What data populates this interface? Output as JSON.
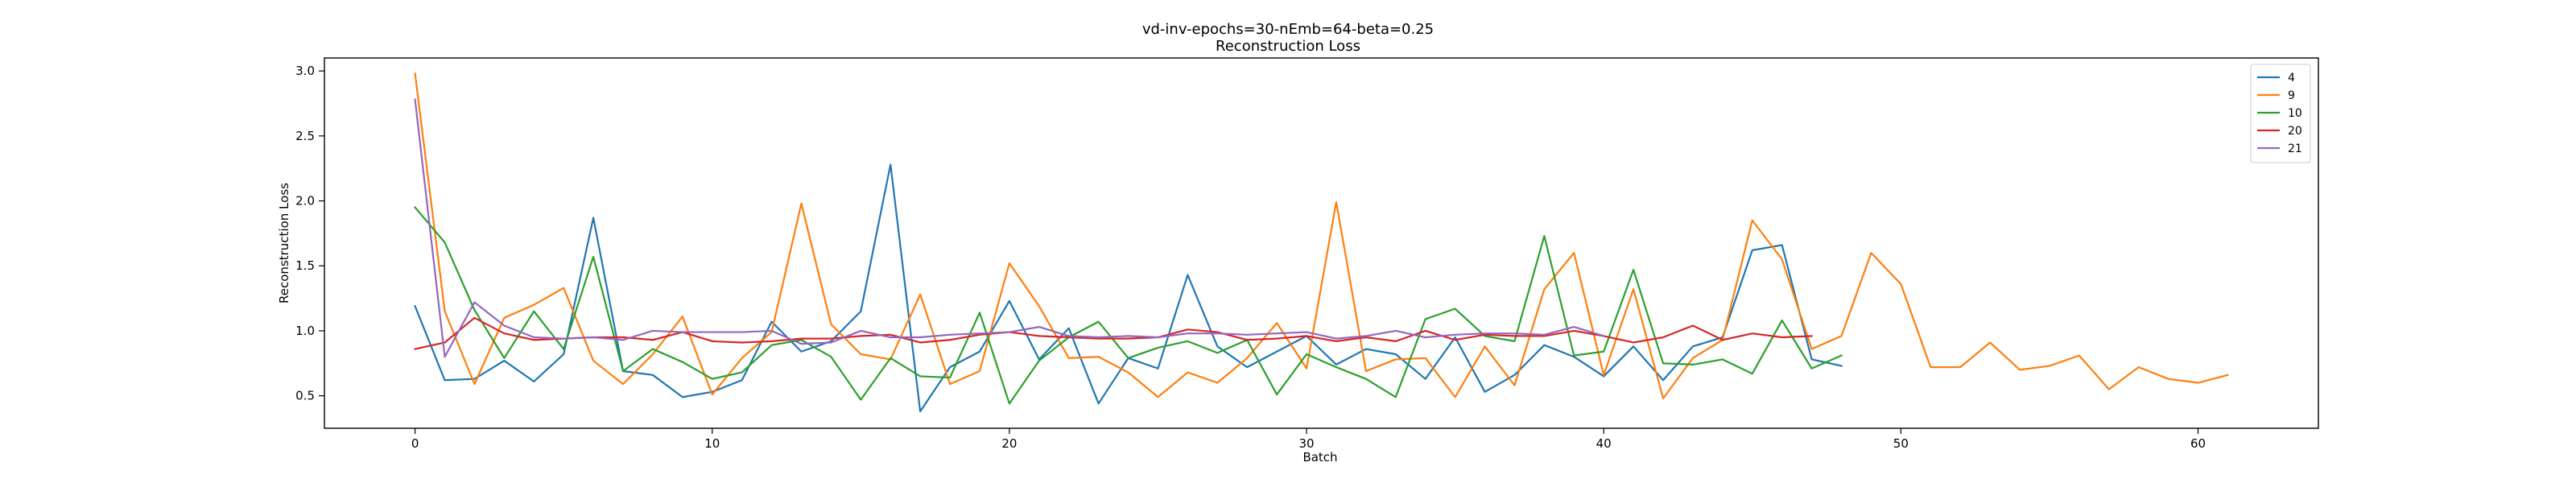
{
  "chart_data": {
    "type": "line",
    "title": "vd-inv-epochs=30-nEmb=64-beta=0.25",
    "subtitle": "Reconstruction Loss",
    "xlabel": "Batch",
    "ylabel": "Reconstruction Loss",
    "xlim": [
      -3.05,
      64.05
    ],
    "ylim": [
      0.25,
      3.1
    ],
    "xticks": [
      0,
      10,
      20,
      30,
      40,
      50,
      60
    ],
    "yticks": [
      0.5,
      1.0,
      1.5,
      2.0,
      2.5,
      3.0
    ],
    "xtick_labels": [
      "0",
      "10",
      "20",
      "30",
      "40",
      "50",
      "60"
    ],
    "ytick_labels": [
      "0.5",
      "1.0",
      "1.5",
      "2.0",
      "2.5",
      "3.0"
    ],
    "grid": false,
    "legend_position": "top-right",
    "series": [
      {
        "name": "4",
        "color": "#1f77b4",
        "values": [
          1.19,
          0.62,
          0.63,
          0.77,
          0.61,
          0.82,
          1.87,
          0.69,
          0.66,
          0.49,
          0.53,
          0.62,
          1.07,
          0.84,
          0.92,
          1.15,
          2.28,
          0.38,
          0.72,
          0.84,
          1.23,
          0.78,
          1.02,
          0.44,
          0.79,
          0.71,
          1.43,
          0.88,
          0.72,
          0.84,
          0.96,
          0.74,
          0.86,
          0.82,
          0.63,
          0.95,
          0.53,
          0.66,
          0.89,
          0.8,
          0.65,
          0.88,
          0.62,
          0.88,
          0.95,
          1.62,
          1.66,
          0.78,
          0.73
        ]
      },
      {
        "name": "9",
        "color": "#ff7f0e",
        "values": [
          2.98,
          1.15,
          0.59,
          1.1,
          1.2,
          1.33,
          0.77,
          0.59,
          0.82,
          1.11,
          0.51,
          0.79,
          0.99,
          1.98,
          1.05,
          0.82,
          0.78,
          1.28,
          0.59,
          0.69,
          1.52,
          1.19,
          0.79,
          0.8,
          0.68,
          0.49,
          0.68,
          0.6,
          0.79,
          1.06,
          0.71,
          1.99,
          0.69,
          0.78,
          0.79,
          0.49,
          0.88,
          0.58,
          1.32,
          1.6,
          0.66,
          1.32,
          0.48,
          0.79,
          0.93,
          1.85,
          1.55,
          0.86,
          0.96,
          1.6,
          1.36,
          0.72,
          0.72,
          0.91,
          0.7,
          0.73,
          0.81,
          0.55,
          0.72,
          0.63,
          0.6,
          0.66
        ]
      },
      {
        "name": "10",
        "color": "#2ca02c",
        "values": [
          1.95,
          1.68,
          1.16,
          0.79,
          1.15,
          0.86,
          1.57,
          0.69,
          0.86,
          0.76,
          0.63,
          0.68,
          0.89,
          0.93,
          0.8,
          0.47,
          0.79,
          0.65,
          0.64,
          1.14,
          0.44,
          0.77,
          0.95,
          1.07,
          0.79,
          0.87,
          0.92,
          0.83,
          0.93,
          0.51,
          0.82,
          0.72,
          0.63,
          0.49,
          1.09,
          1.17,
          0.96,
          0.92,
          1.73,
          0.81,
          0.84,
          1.47,
          0.75,
          0.74,
          0.78,
          0.67,
          1.08,
          0.71,
          0.81
        ]
      },
      {
        "name": "20",
        "color": "#d62728",
        "values": [
          0.86,
          0.91,
          1.1,
          0.98,
          0.93,
          0.94,
          0.95,
          0.95,
          0.93,
          0.99,
          0.92,
          0.91,
          0.92,
          0.94,
          0.94,
          0.96,
          0.97,
          0.91,
          0.93,
          0.97,
          0.99,
          0.96,
          0.95,
          0.94,
          0.94,
          0.95,
          1.01,
          0.99,
          0.93,
          0.94,
          0.96,
          0.92,
          0.95,
          0.92,
          1.0,
          0.93,
          0.97,
          0.96,
          0.96,
          1.0,
          0.96,
          0.91,
          0.95,
          1.04,
          0.93,
          0.98,
          0.95,
          0.96
        ]
      },
      {
        "name": "21",
        "color": "#9467bd",
        "values": [
          2.78,
          0.8,
          1.22,
          1.04,
          0.95,
          0.94,
          0.95,
          0.93,
          1.0,
          0.99,
          0.99,
          0.99,
          1.0,
          0.9,
          0.91,
          1.0,
          0.95,
          0.95,
          0.97,
          0.98,
          0.99,
          1.03,
          0.96,
          0.95,
          0.96,
          0.95,
          0.98,
          0.98,
          0.97,
          0.98,
          0.99,
          0.94,
          0.96,
          1.0,
          0.95,
          0.97,
          0.98,
          0.98,
          0.97,
          1.03,
          0.96
        ]
      }
    ]
  }
}
